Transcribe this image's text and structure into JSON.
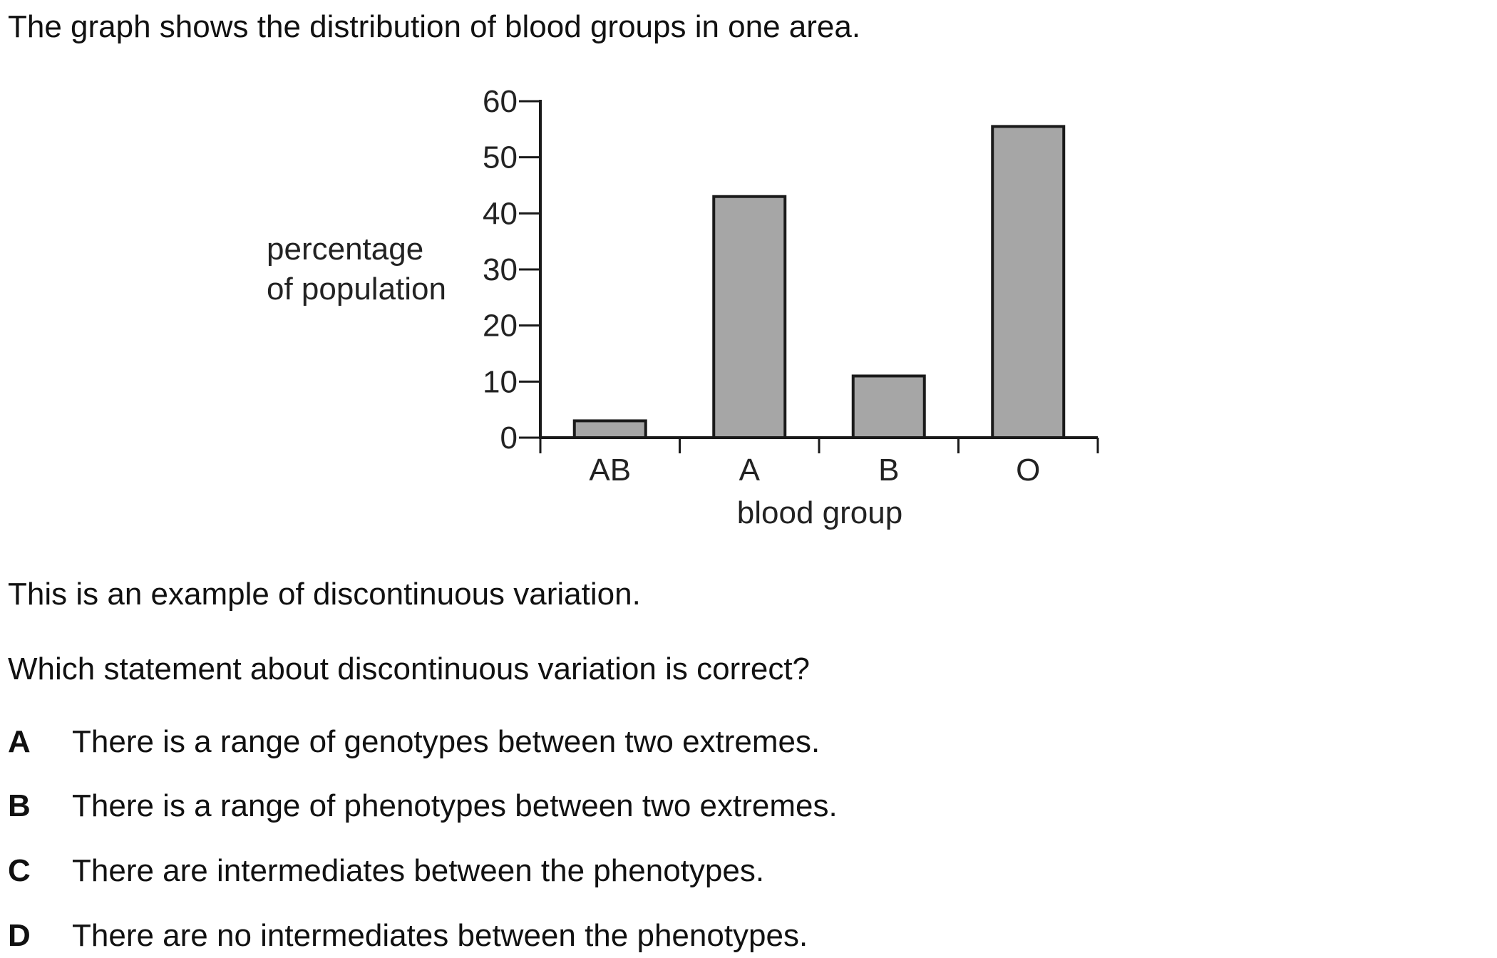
{
  "intro": "The graph shows the distribution of blood groups in one area.",
  "statement": "This is an example of discontinuous variation.",
  "question": "Which statement about discontinuous variation is correct?",
  "options": [
    {
      "letter": "A",
      "text": "There is a range of genotypes between two extremes."
    },
    {
      "letter": "B",
      "text": "There is a range of phenotypes between two extremes."
    },
    {
      "letter": "C",
      "text": "There are intermediates between the phenotypes."
    },
    {
      "letter": "D",
      "text": "There are no intermediates between the phenotypes."
    }
  ],
  "chart_data": {
    "type": "bar",
    "title": "",
    "xlabel": "blood group",
    "ylabel_lines": [
      "percentage",
      "of population"
    ],
    "categories": [
      "AB",
      "A",
      "B",
      "O"
    ],
    "values": [
      3,
      43,
      11,
      55.5
    ],
    "ylim": [
      0,
      60
    ],
    "yticks": [
      0,
      10,
      20,
      30,
      40,
      50,
      60
    ],
    "grid": false,
    "legend": "none",
    "bar_color": "#a6a6a6",
    "bar_edge_color": "#1a1a1a"
  }
}
